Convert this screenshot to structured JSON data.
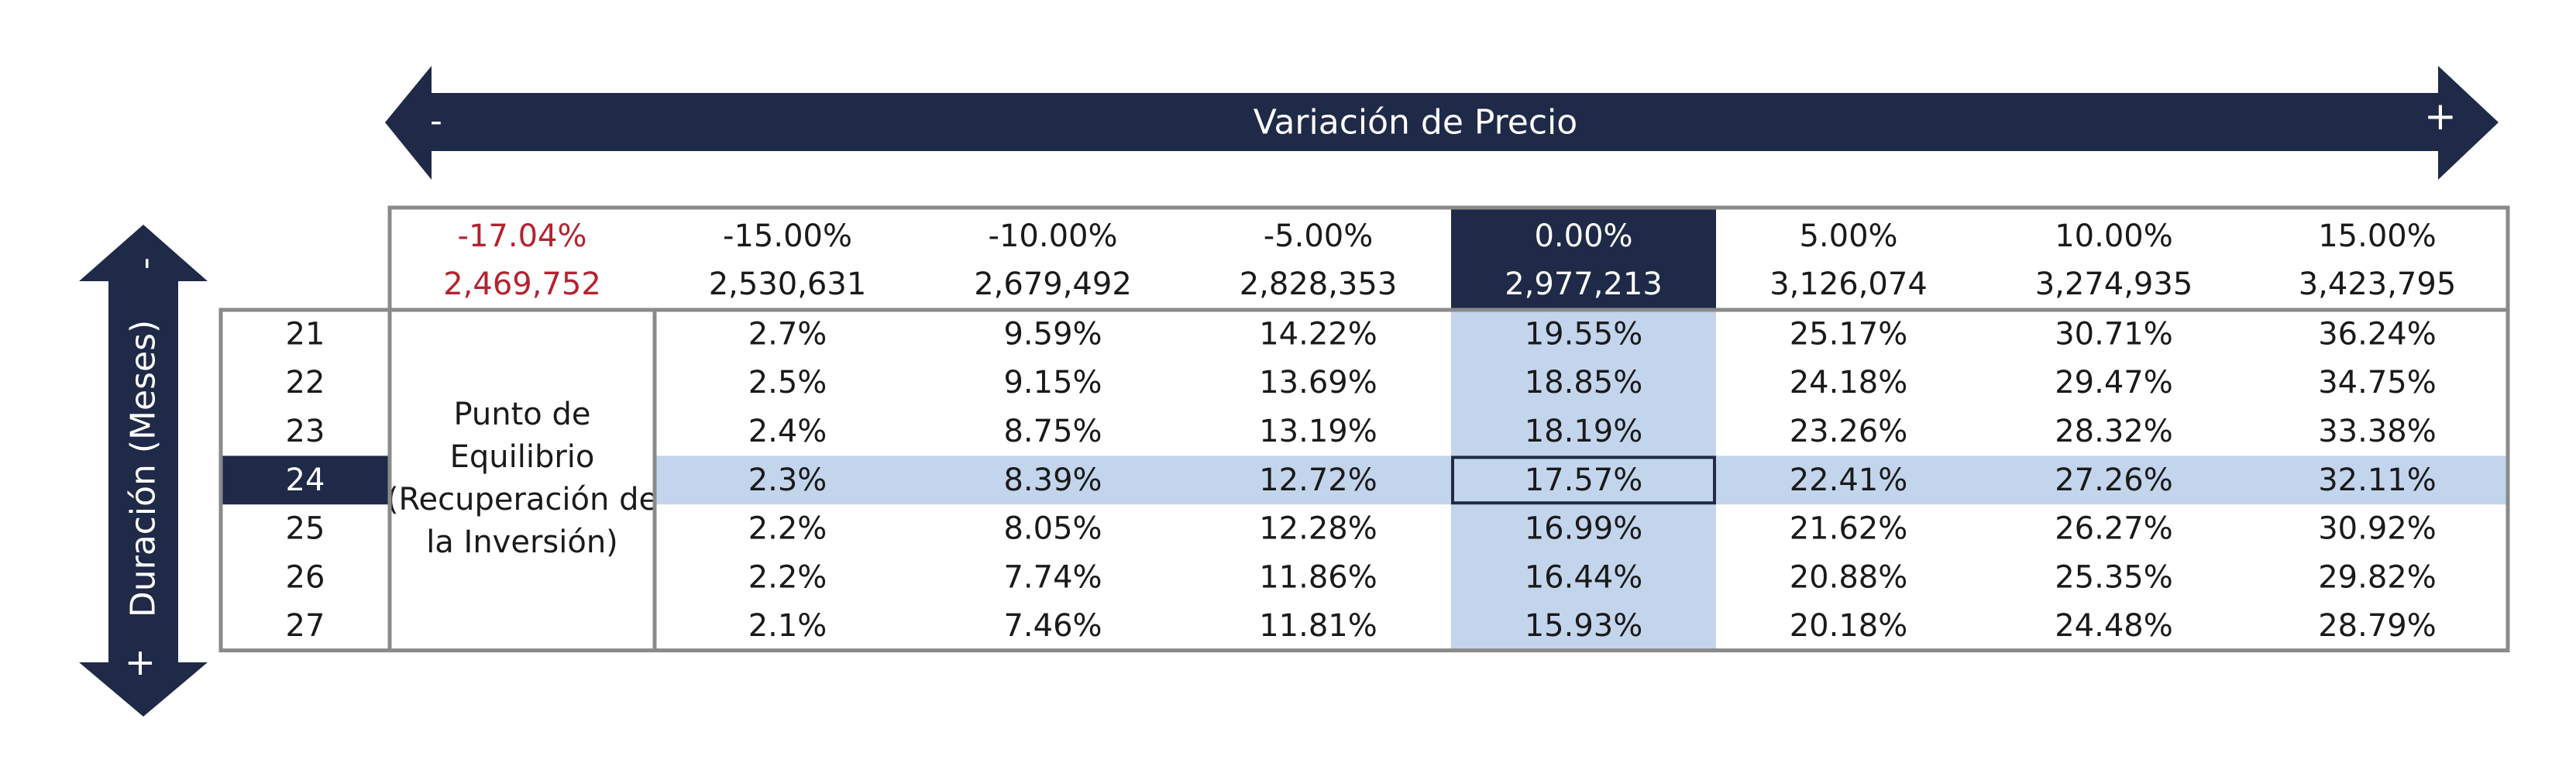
{
  "colors": {
    "navy": "#1f2a48",
    "highlight": "#c3d5ec",
    "border": "#8a8a8a",
    "negative": "#b3232f",
    "text": "#1a1a1a",
    "white": "#ffffff"
  },
  "price_axis": {
    "label": "Variación de Precio",
    "minus_label": "-",
    "plus_label": "+"
  },
  "duration_axis": {
    "label": "Duración (Meses)",
    "minus_label": "-",
    "plus_label": "+"
  },
  "breakeven_label": [
    "Punto de",
    "Equilibrio",
    "(Recuperación de",
    "la Inversión)"
  ],
  "chart_data": {
    "type": "table",
    "row_header": "Duración (Meses)",
    "column_header": "Variación de Precio",
    "breakeven": {
      "variation": "-17.04%",
      "price": "2,469,752"
    },
    "columns": [
      {
        "variation": "-15.00%",
        "price": "2,530,631"
      },
      {
        "variation": "-10.00%",
        "price": "2,679,492"
      },
      {
        "variation": "-5.00%",
        "price": "2,828,353"
      },
      {
        "variation": "0.00%",
        "price": "2,977,213"
      },
      {
        "variation": "5.00%",
        "price": "3,126,074"
      },
      {
        "variation": "10.00%",
        "price": "3,274,935"
      },
      {
        "variation": "15.00%",
        "price": "3,423,795"
      }
    ],
    "rows": [
      {
        "months": "21",
        "values": [
          "2.7%",
          "9.59%",
          "14.22%",
          "19.55%",
          "25.17%",
          "30.71%",
          "36.24%"
        ]
      },
      {
        "months": "22",
        "values": [
          "2.5%",
          "9.15%",
          "13.69%",
          "18.85%",
          "24.18%",
          "29.47%",
          "34.75%"
        ]
      },
      {
        "months": "23",
        "values": [
          "2.4%",
          "8.75%",
          "13.19%",
          "18.19%",
          "23.26%",
          "28.32%",
          "33.38%"
        ]
      },
      {
        "months": "24",
        "values": [
          "2.3%",
          "8.39%",
          "12.72%",
          "17.57%",
          "22.41%",
          "27.26%",
          "32.11%"
        ]
      },
      {
        "months": "25",
        "values": [
          "2.2%",
          "8.05%",
          "12.28%",
          "16.99%",
          "21.62%",
          "26.27%",
          "30.92%"
        ]
      },
      {
        "months": "26",
        "values": [
          "2.2%",
          "7.74%",
          "11.86%",
          "16.44%",
          "20.88%",
          "25.35%",
          "29.82%"
        ]
      },
      {
        "months": "27",
        "values": [
          "2.1%",
          "7.46%",
          "11.81%",
          "15.93%",
          "20.18%",
          "24.48%",
          "28.79%"
        ]
      }
    ],
    "base_case": {
      "months": "24",
      "variation": "0.00%"
    }
  }
}
